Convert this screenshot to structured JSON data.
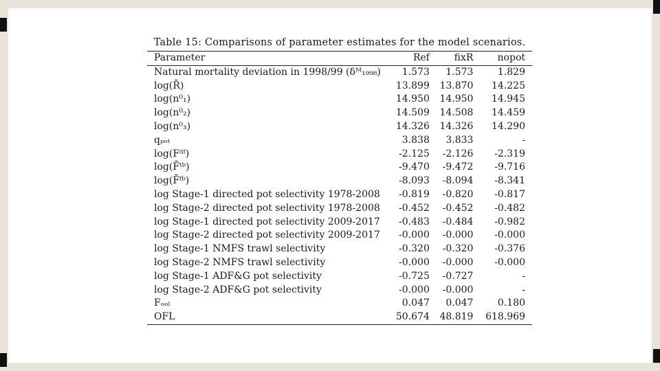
{
  "caption": "Table 15: Comparisons of parameter estimates for the model scenarios.",
  "headers": [
    "Parameter",
    "Ref",
    "fixR",
    "nopot"
  ],
  "rows": [
    [
      "Natural mortality deviation in 1998/99 (δᴹ₁₉₉₈)",
      "1.573",
      "1.573",
      "1.829"
    ],
    [
      "log(R̄)",
      "13.899",
      "13.870",
      "14.225"
    ],
    [
      "log(n⁰₁)",
      "14.950",
      "14.950",
      "14.945"
    ],
    [
      "log(n⁰₂)",
      "14.509",
      "14.508",
      "14.459"
    ],
    [
      "log(n⁰₃)",
      "14.326",
      "14.326",
      "14.290"
    ],
    [
      "qₚₒₜ",
      "3.838",
      "3.833",
      "-"
    ],
    [
      "log(Fᵈᶠ)",
      "-2.125",
      "-2.126",
      "-2.319"
    ],
    [
      "log(F̄ᵗᵇ)",
      "-9.470",
      "-9.472",
      "-9.716"
    ],
    [
      "log(F̄ᶠᵇ)",
      "-8.093",
      "-8.094",
      "-8.341"
    ],
    [
      "log Stage-1 directed pot selectivity 1978-2008",
      "-0.819",
      "-0.820",
      "-0.817"
    ],
    [
      "log Stage-2 directed pot selectivity 1978-2008",
      "-0.452",
      "-0.452",
      "-0.482"
    ],
    [
      "log Stage-1 directed pot selectivity 2009-2017",
      "-0.483",
      "-0.484",
      "-0.982"
    ],
    [
      "log Stage-2 directed pot selectivity 2009-2017",
      "-0.000",
      "-0.000",
      "-0.000"
    ],
    [
      "log Stage-1 NMFS trawl selectivity",
      "-0.320",
      "-0.320",
      "-0.376"
    ],
    [
      "log Stage-2 NMFS trawl selectivity",
      "-0.000",
      "-0.000",
      "-0.000"
    ],
    [
      "log Stage-1 ADF&G pot selectivity",
      "-0.725",
      "-0.727",
      "-"
    ],
    [
      "log Stage-2 ADF&G pot selectivity",
      "-0.000",
      "-0.000",
      "-"
    ],
    [
      "Fₒₒₗ",
      "0.047",
      "0.047",
      "0.180"
    ],
    [
      "OFL",
      "50.674",
      "48.819",
      "618.969"
    ]
  ]
}
